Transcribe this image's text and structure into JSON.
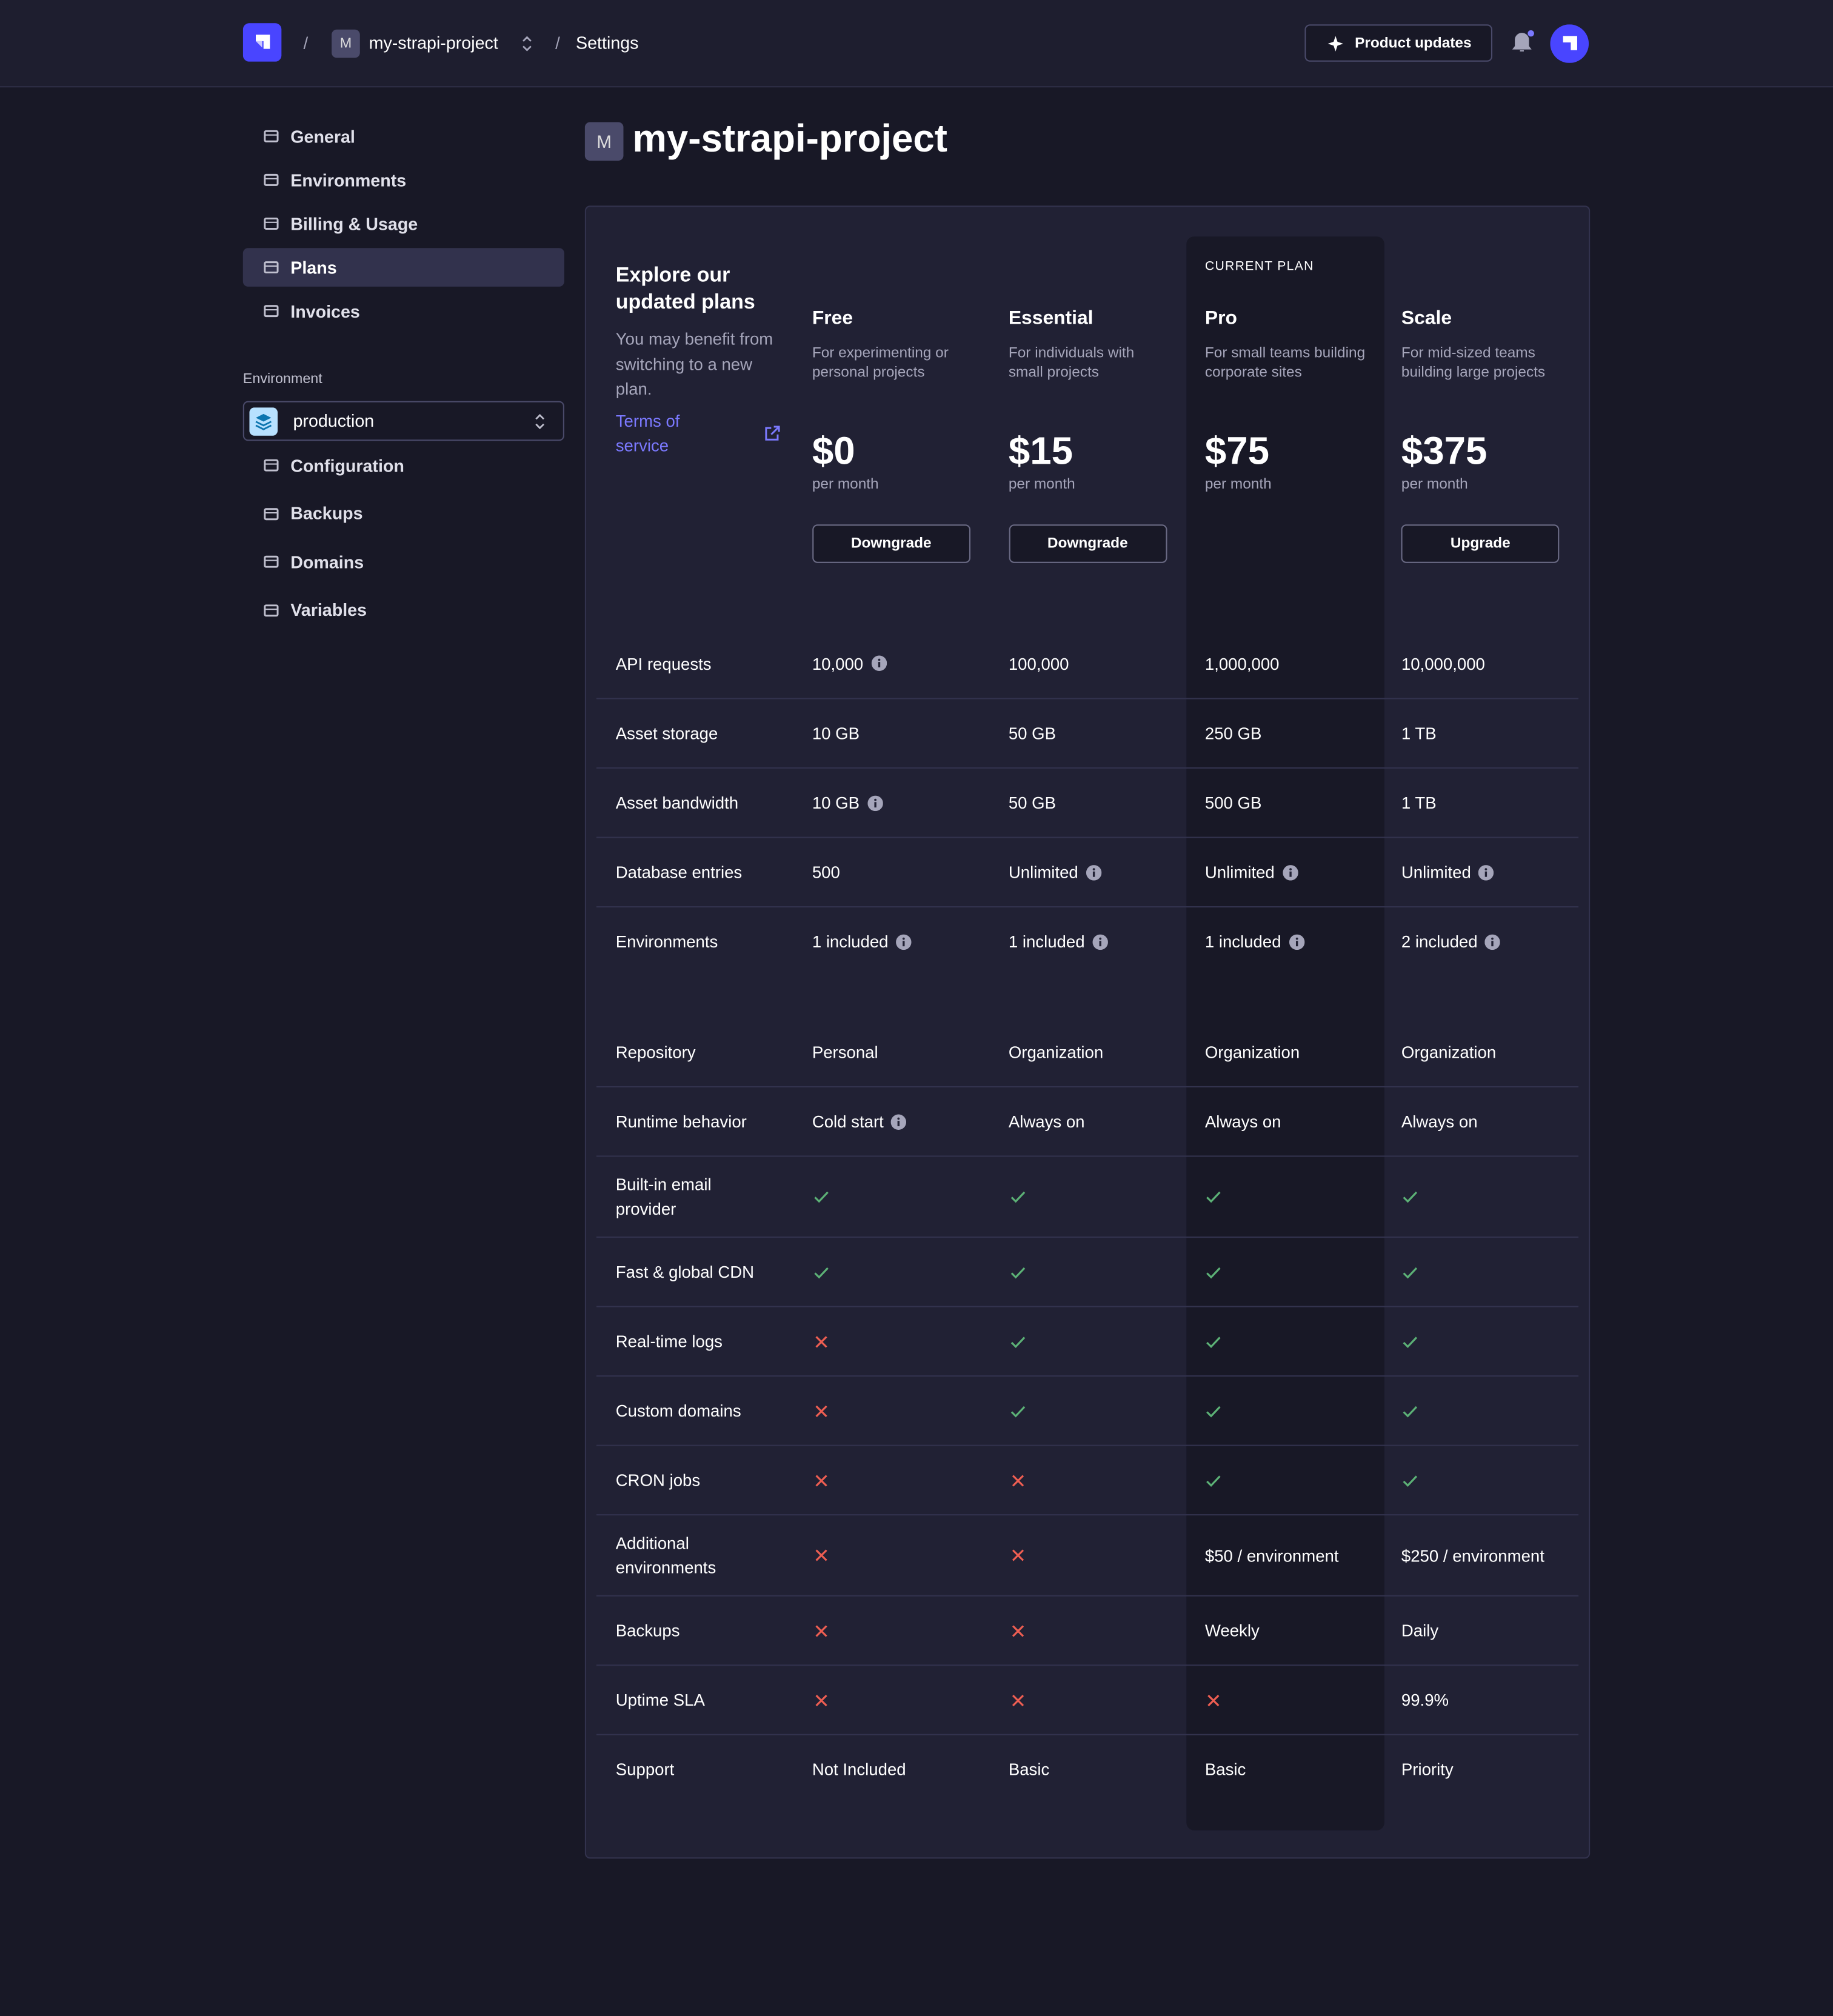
{
  "header": {
    "project_initial": "M",
    "project": "my-strapi-project",
    "page": "Settings",
    "product_updates": "Product updates"
  },
  "sidebar": {
    "nav": [
      "General",
      "Environments",
      "Billing & Usage",
      "Plans",
      "Invoices"
    ],
    "active": "Plans",
    "environment_label": "Environment",
    "environment": "production",
    "env_nav": [
      "Configuration",
      "Backups",
      "Domains",
      "Variables"
    ]
  },
  "page": {
    "initial": "M",
    "title": "my-strapi-project"
  },
  "plans": {
    "intro": {
      "title": "Explore our updated plans",
      "text": "You may benefit from switching to a new plan.",
      "terms": "Terms of service"
    },
    "current_label": "CURRENT PLAN",
    "columns": [
      {
        "name": "Free",
        "description": "For experimenting or personal projects",
        "price": "$0",
        "period": "per month",
        "action": "Downgrade",
        "current": false
      },
      {
        "name": "Essential",
        "description": "For individuals with small projects",
        "price": "$15",
        "period": "per month",
        "action": "Downgrade",
        "current": false
      },
      {
        "name": "Pro",
        "description": "For small teams building corporate sites",
        "price": "$75",
        "period": "per month",
        "action": null,
        "current": true
      },
      {
        "name": "Scale",
        "description": "For mid-sized teams building large projects",
        "price": "$375",
        "period": "per month",
        "action": "Upgrade",
        "current": false
      }
    ],
    "groups": [
      [
        {
          "label": "API requests",
          "cells": [
            "10,000",
            "100,000",
            "1,000,000",
            "10,000,000"
          ],
          "info": [
            true,
            false,
            false,
            false
          ]
        },
        {
          "label": "Asset storage",
          "cells": [
            "10 GB",
            "50 GB",
            "250 GB",
            "1 TB"
          ]
        },
        {
          "label": "Asset bandwidth",
          "cells": [
            "10 GB",
            "50 GB",
            "500 GB",
            "1 TB"
          ],
          "info": [
            true,
            false,
            false,
            false
          ]
        },
        {
          "label": "Database entries",
          "cells": [
            "500",
            "Unlimited",
            "Unlimited",
            "Unlimited"
          ],
          "info": [
            false,
            true,
            true,
            true
          ]
        },
        {
          "label": "Environments",
          "cells": [
            "1 included",
            "1 included",
            "1 included",
            "2 included"
          ],
          "info": [
            true,
            true,
            true,
            true
          ]
        }
      ],
      [
        {
          "label": "Repository",
          "cells": [
            "Personal",
            "Organization",
            "Organization",
            "Organization"
          ]
        },
        {
          "label": "Runtime behavior",
          "cells": [
            "Cold start",
            "Always on",
            "Always on",
            "Always on"
          ],
          "info": [
            true,
            false,
            false,
            false
          ]
        },
        {
          "label": "Built-in email provider",
          "cells": [
            true,
            true,
            true,
            true
          ]
        },
        {
          "label": "Fast & global CDN",
          "cells": [
            true,
            true,
            true,
            true
          ]
        },
        {
          "label": "Real-time logs",
          "cells": [
            false,
            true,
            true,
            true
          ]
        },
        {
          "label": "Custom domains",
          "cells": [
            false,
            true,
            true,
            true
          ]
        },
        {
          "label": "CRON jobs",
          "cells": [
            false,
            false,
            true,
            true
          ]
        },
        {
          "label": "Additional environments",
          "cells": [
            false,
            false,
            "$50 / environment",
            "$250 / environment"
          ]
        },
        {
          "label": "Backups",
          "cells": [
            false,
            false,
            "Weekly",
            "Daily"
          ]
        },
        {
          "label": "Uptime SLA",
          "cells": [
            false,
            false,
            false,
            "99.9%"
          ]
        },
        {
          "label": "Support",
          "cells": [
            "Not Included",
            "Basic",
            "Basic",
            "Priority"
          ]
        }
      ]
    ]
  }
}
